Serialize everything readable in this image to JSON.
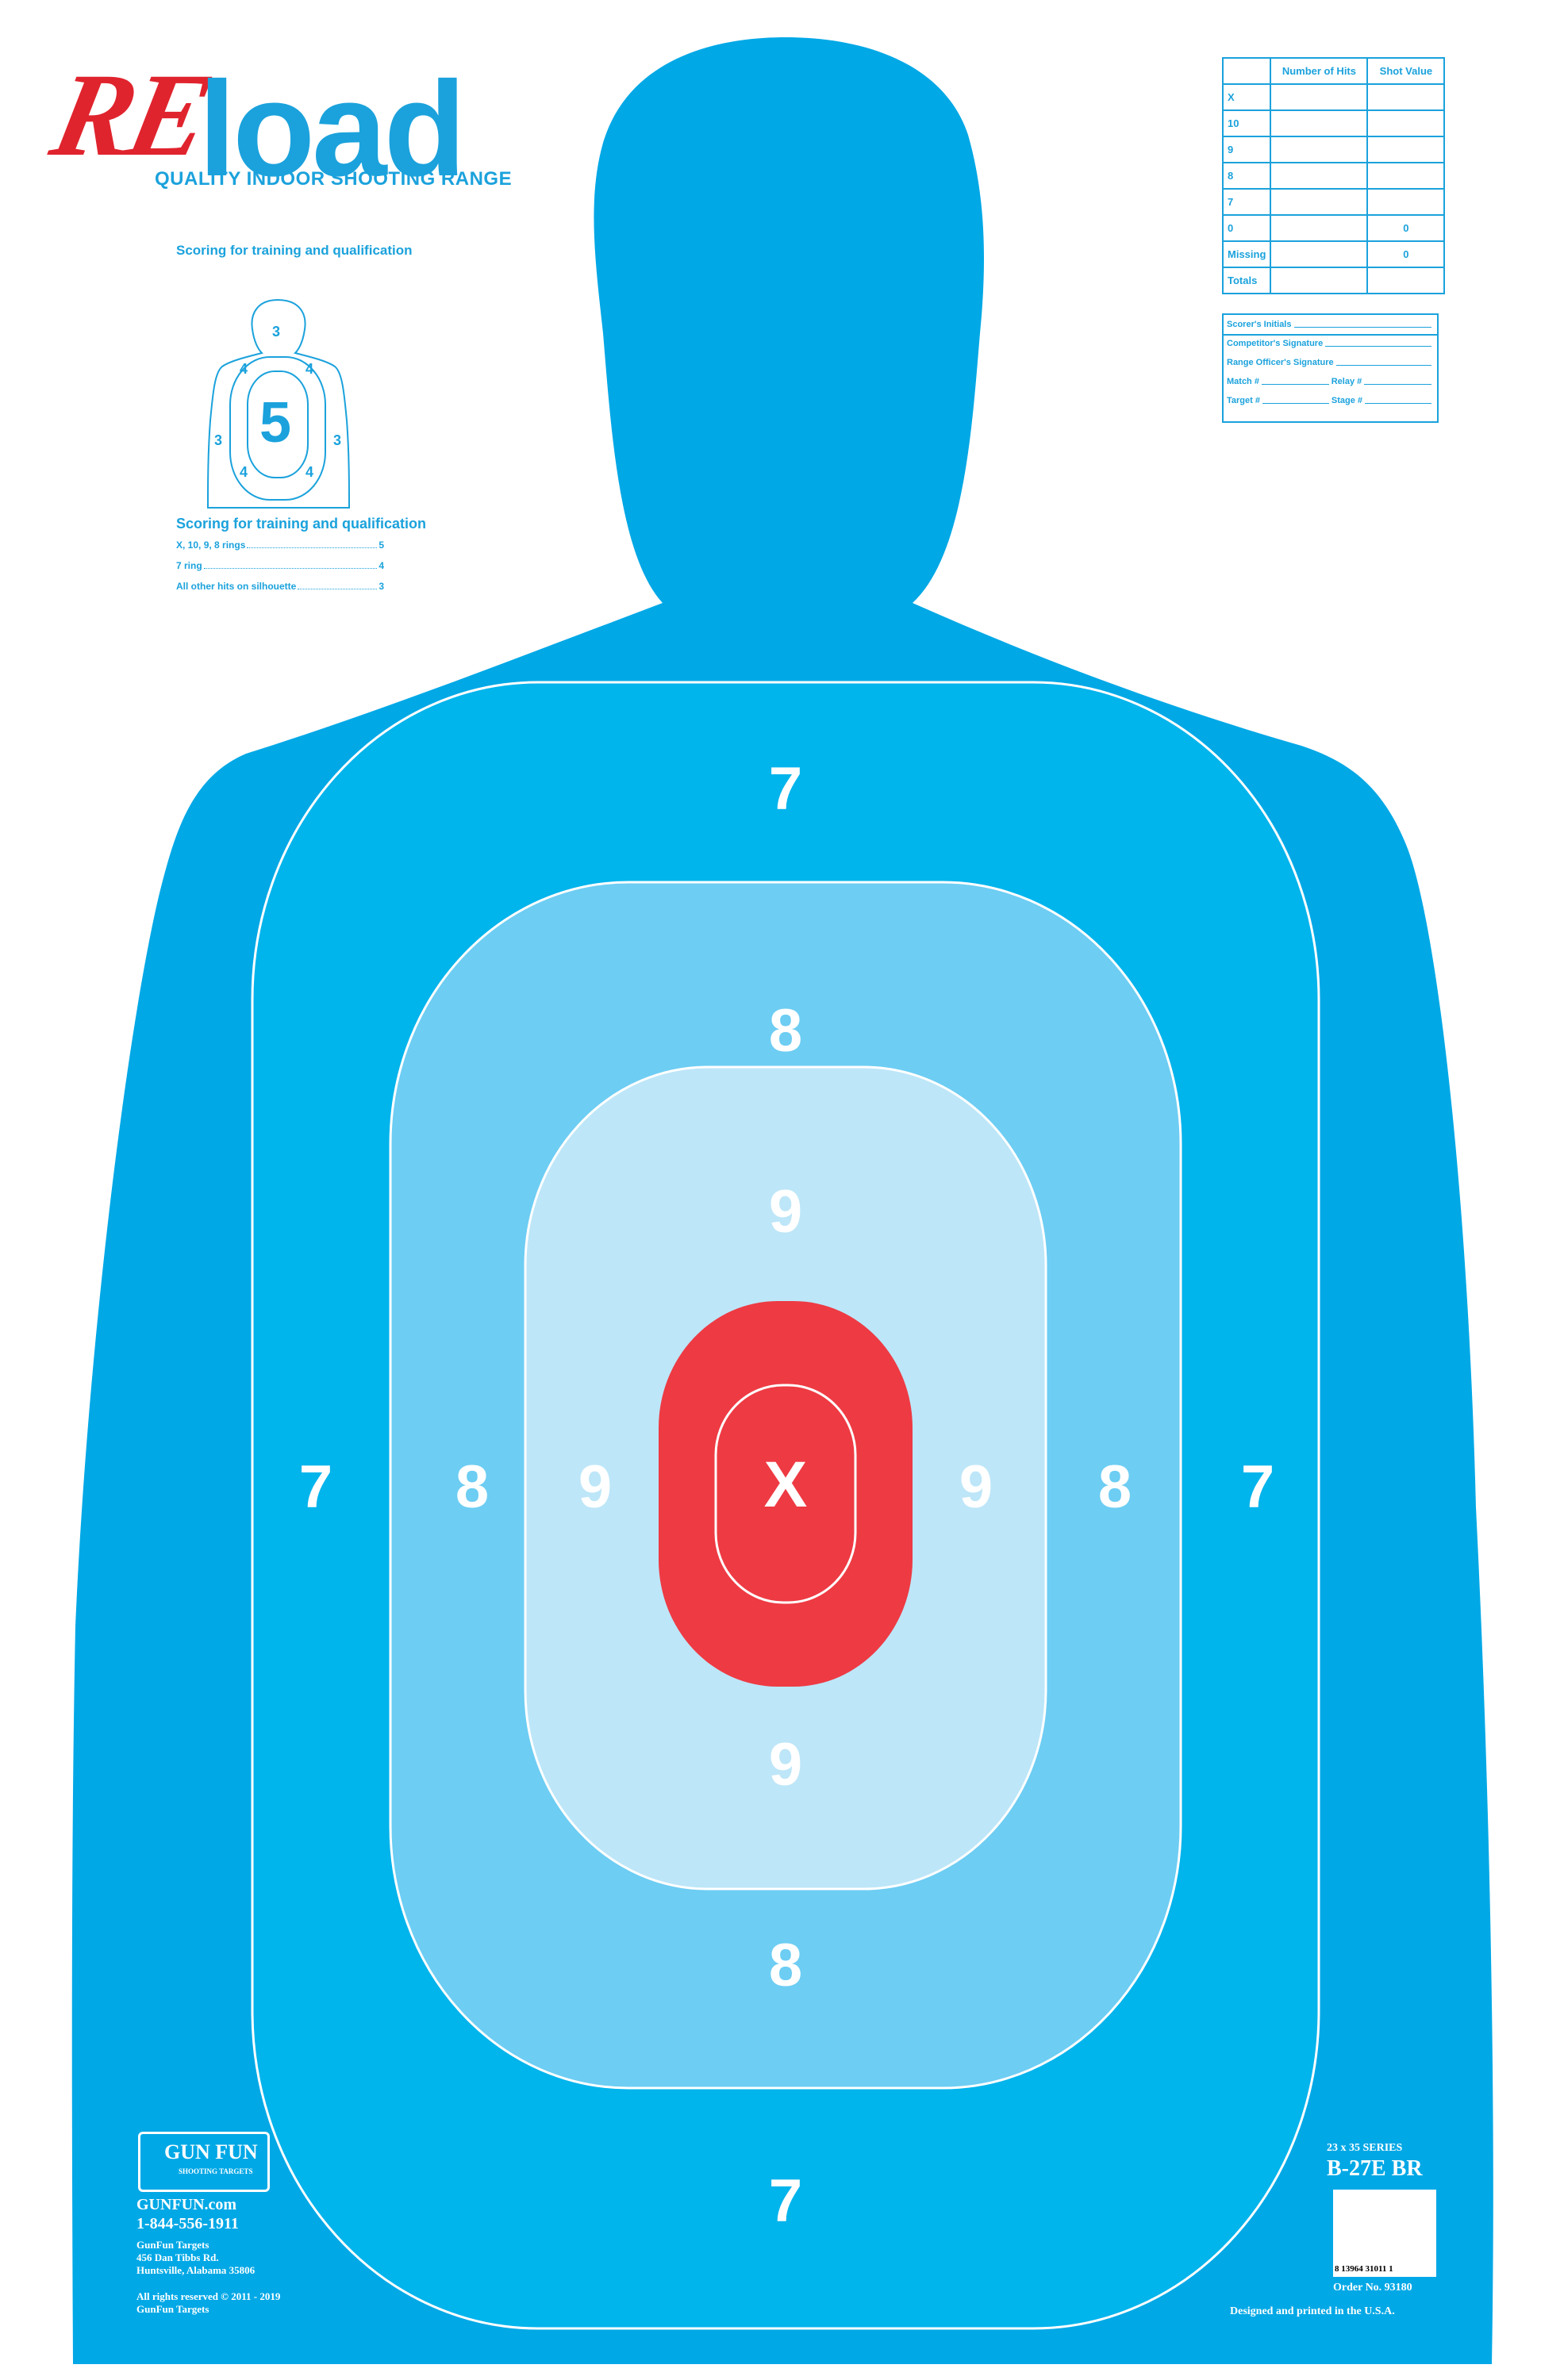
{
  "logo": {
    "re": "RE",
    "load": "load",
    "tagline": "QUALITY INDOOR SHOOTING RANGE"
  },
  "scoring_panel": {
    "title": "Scoring for training and qualification",
    "mini_center": "5",
    "mini_labels": {
      "top": "3",
      "upper_left": "4",
      "upper_right": "4",
      "left": "3",
      "right": "3",
      "lower_left": "4",
      "lower_right": "4"
    },
    "title2": "Scoring for training and qualification",
    "rules": [
      {
        "label": "X, 10, 9, 8 rings",
        "value": "5"
      },
      {
        "label": "7 ring",
        "value": "4"
      },
      {
        "label": "All other hits on silhouette",
        "value": "3"
      }
    ]
  },
  "score_table": {
    "headers": [
      "",
      "Number of Hits",
      "Shot Value"
    ],
    "rows": [
      {
        "label": "X",
        "hits": "",
        "value": ""
      },
      {
        "label": "10",
        "hits": "",
        "value": ""
      },
      {
        "label": "9",
        "hits": "",
        "value": ""
      },
      {
        "label": "8",
        "hits": "",
        "value": ""
      },
      {
        "label": "7",
        "hits": "",
        "value": ""
      },
      {
        "label": "0",
        "hits": "",
        "value": "0"
      },
      {
        "label": "Missing",
        "hits": "",
        "value": "0"
      },
      {
        "label": "Totals",
        "hits": "",
        "value": ""
      }
    ]
  },
  "signatures": {
    "scorer": "Scorer's Initials",
    "competitor": "Competitor's Signature",
    "range_officer": "Range Officer's Signature",
    "match": "Match #",
    "relay": "Relay #",
    "target": "Target #",
    "stage": "Stage #"
  },
  "rings": {
    "seven": "7",
    "eight": "8",
    "nine": "9",
    "center": "X",
    "colors": {
      "silhouette": "#00a8e6",
      "ring7": "#00b4ec",
      "ring8": "#6dcdf3",
      "ring9": "#bde6f8",
      "center": "#ee3a43"
    }
  },
  "manufacturer": {
    "logo_text": "GUN FUN",
    "logo_sub": "SHOOTING TARGETS",
    "website": "GUNFUN.com",
    "phone": "1-844-556-1911",
    "company": "GunFun Targets",
    "street": "456 Dan Tibbs Rd.",
    "city": "Huntsville, Alabama 35806",
    "rights": "All rights reserved © 2011 - 2019",
    "rights_owner": "GunFun Targets"
  },
  "product": {
    "series": "23 x 35 SERIES",
    "model": "B-27E  BR",
    "barcode_digits": "8 13964 31011 1",
    "order": "Order No. 93180",
    "made_in": "Designed and printed in the U.S.A."
  }
}
